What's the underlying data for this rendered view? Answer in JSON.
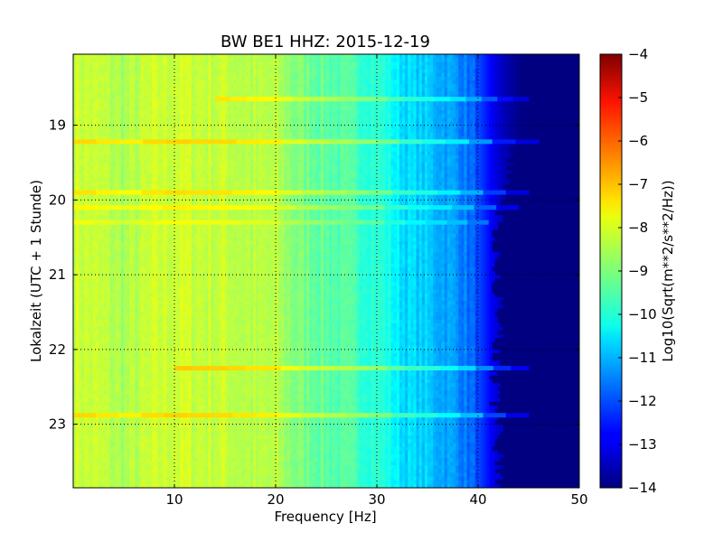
{
  "chart_data": {
    "type": "heatmap",
    "title": "BW BE1 HHZ: 2015-12-19",
    "xlabel": "Frequency [Hz]",
    "ylabel": "Lokalzeit (UTC + 1 Stunde)",
    "xlim": [
      0,
      50
    ],
    "ylim": [
      18.05,
      23.85
    ],
    "y_inverted": true,
    "x_ticks": [
      10,
      20,
      30,
      40,
      50
    ],
    "y_ticks": [
      19,
      20,
      21,
      22,
      23
    ],
    "grid": true,
    "grid_style": "dotted",
    "colormap": "jet",
    "colorbar": {
      "label": "Log10(Sqrt(m**2/s**2/Hz))",
      "range": [
        -14,
        -4
      ],
      "ticks": [
        -4,
        -5,
        -6,
        -7,
        -8,
        -9,
        -10,
        -11,
        -12,
        -13,
        -14
      ]
    },
    "spectrum_profile": {
      "frequency_hz": [
        0,
        3,
        5,
        8,
        10,
        13,
        15,
        18,
        20,
        22,
        25,
        28,
        30,
        31,
        32,
        33,
        35,
        38,
        40,
        41,
        42,
        43,
        44,
        45,
        50
      ],
      "log10_amplitude": [
        -8.2,
        -8.4,
        -8.6,
        -8.3,
        -8.2,
        -8.3,
        -8.3,
        -8.5,
        -8.5,
        -9.0,
        -9.3,
        -9.6,
        -9.8,
        -10.0,
        -10.4,
        -10.6,
        -10.8,
        -11.3,
        -12.0,
        -12.6,
        -13.2,
        -13.6,
        -13.9,
        -14.0,
        -14.0
      ]
    },
    "cutoff_frequency_hz": [
      44,
      45,
      43,
      42,
      41.5,
      42,
      41.5,
      41.8,
      42
    ],
    "horizontal_bands": [
      {
        "time": 18.65,
        "f_start": 14,
        "f_end": 45,
        "boost": 0.8
      },
      {
        "time": 19.22,
        "f_start": 0,
        "f_end": 46,
        "boost": 0.9
      },
      {
        "time": 19.9,
        "f_start": 0,
        "f_end": 45,
        "boost": 0.8
      },
      {
        "time": 20.1,
        "f_start": 0,
        "f_end": 44,
        "boost": 0.6
      },
      {
        "time": 20.3,
        "f_start": 0,
        "f_end": 41,
        "boost": 0.4
      },
      {
        "time": 22.25,
        "f_start": 10,
        "f_end": 45,
        "boost": 1.0
      },
      {
        "time": 22.88,
        "f_start": 0,
        "f_end": 45,
        "boost": 0.9
      }
    ]
  }
}
